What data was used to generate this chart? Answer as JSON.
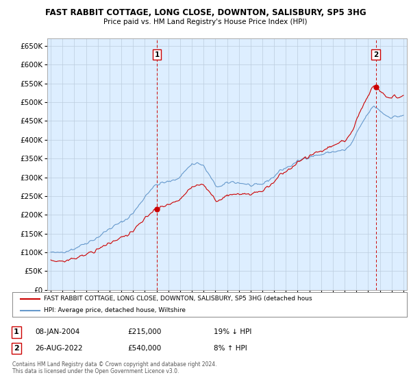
{
  "title": "FAST RABBIT COTTAGE, LONG CLOSE, DOWNTON, SALISBURY, SP5 3HG",
  "subtitle": "Price paid vs. HM Land Registry's House Price Index (HPI)",
  "legend_line1": "FAST RABBIT COTTAGE, LONG CLOSE, DOWNTON, SALISBURY, SP5 3HG (detached hous",
  "legend_line2": "HPI: Average price, detached house, Wiltshire",
  "annotation1": {
    "num": "1",
    "date": "08-JAN-2004",
    "price": "£215,000",
    "change": "19% ↓ HPI"
  },
  "annotation2": {
    "num": "2",
    "date": "26-AUG-2022",
    "price": "£540,000",
    "change": "8% ↑ HPI"
  },
  "footnote": "Contains HM Land Registry data © Crown copyright and database right 2024.\nThis data is licensed under the Open Government Licence v3.0.",
  "ylabel_ticks": [
    0,
    50000,
    100000,
    150000,
    200000,
    250000,
    300000,
    350000,
    400000,
    450000,
    500000,
    550000,
    600000,
    650000
  ],
  "hpi_color": "#6699cc",
  "price_color": "#cc0000",
  "vline_color": "#cc0000",
  "background_color": "#ffffff",
  "plot_bg_color": "#ddeeff",
  "grid_color": "#bbccdd",
  "marker1_year": 2004.04,
  "marker1_value": 215000,
  "marker2_year": 2022.65,
  "marker2_value": 540000,
  "xlim": [
    1994.7,
    2025.3
  ],
  "ylim": [
    0,
    670000
  ]
}
